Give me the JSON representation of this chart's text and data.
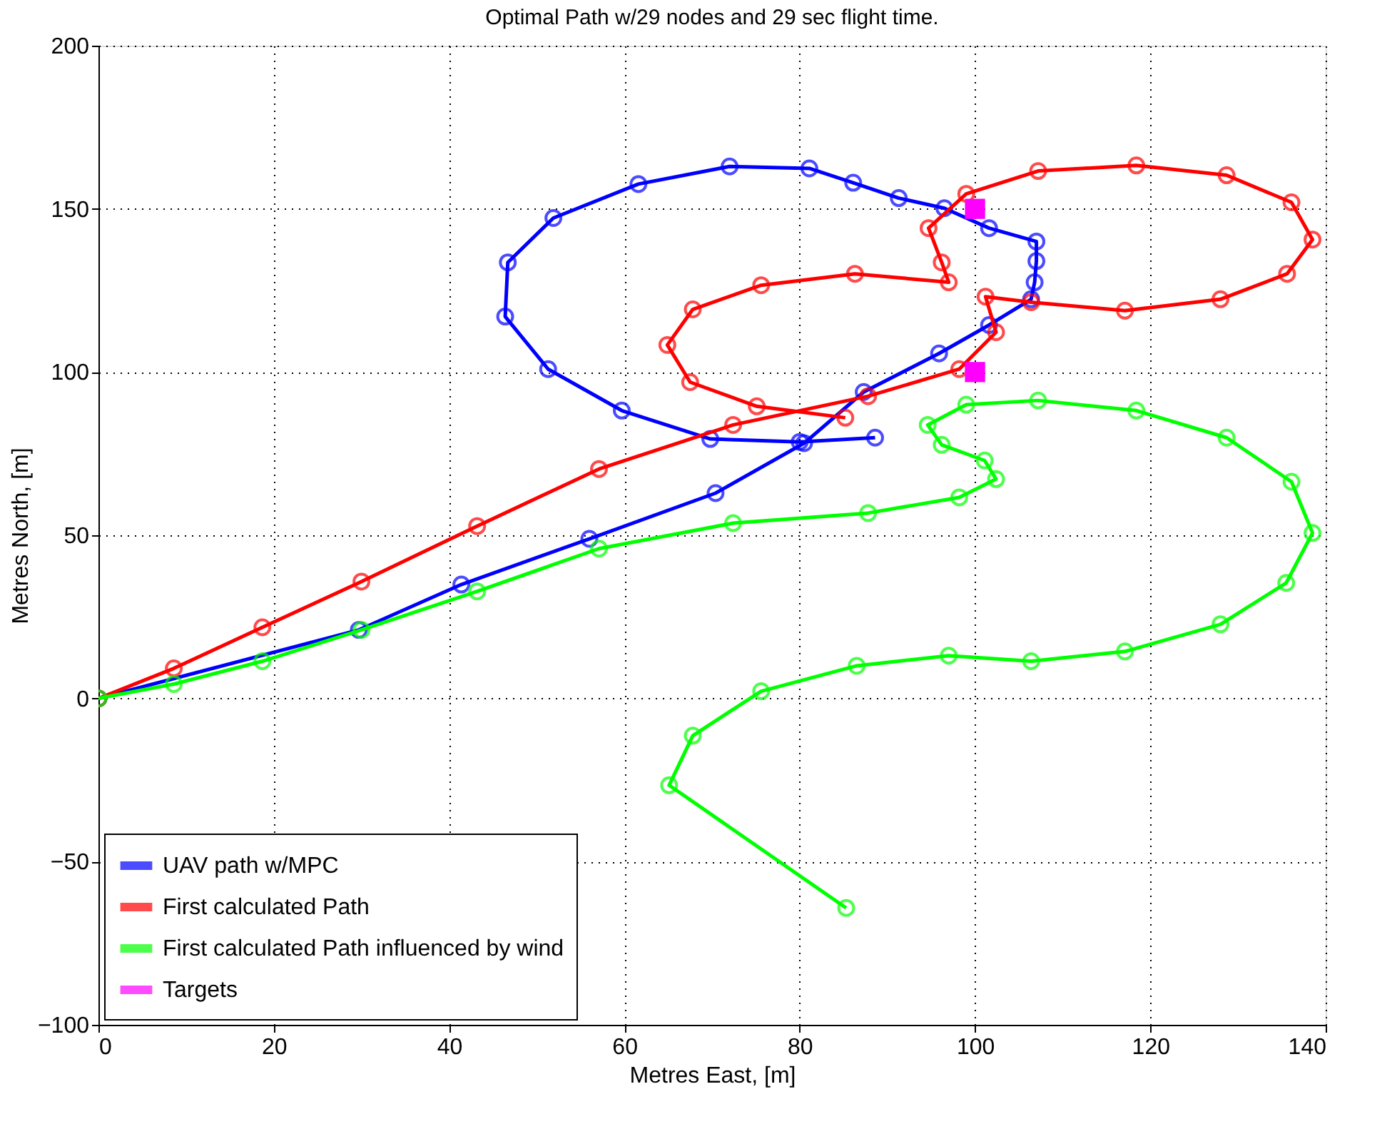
{
  "chart_data": {
    "type": "line",
    "title": "Optimal Path w/29 nodes and 29 sec flight time.",
    "xlabel": "Metres East, [m]",
    "ylabel": "Metres North, [m]",
    "xlim": [
      0,
      140
    ],
    "xticks": [
      0,
      20,
      40,
      60,
      80,
      100,
      120,
      140
    ],
    "ylim": [
      -100,
      200
    ],
    "yticks": [
      -100,
      -50,
      0,
      50,
      100,
      150,
      200
    ],
    "grid": true,
    "legend": "bottom left",
    "line_style": "solid",
    "series": [
      {
        "name": "UAV path w/MPC",
        "color": "#0000ff",
        "marker": "circle",
        "x": [
          0,
          29.7,
          41.4,
          56,
          70.4,
          80.5,
          87.3,
          95.9,
          101.6,
          106.4,
          106.8,
          107,
          107,
          101.6,
          96.5,
          91.3,
          86.1,
          81.1,
          72,
          61.6,
          51.9,
          46.7,
          46.4,
          51.3,
          59.7,
          69.8,
          80,
          88.6
        ],
        "values": [
          0,
          21,
          34.9,
          48.9,
          62.9,
          78.2,
          93.9,
          105.7,
          114.4,
          122.3,
          127.5,
          134,
          140,
          144.1,
          150.2,
          153.3,
          158,
          162.4,
          163,
          157.6,
          147.2,
          133.6,
          117,
          100.9,
          88.2,
          79.5,
          78.6,
          79.9
        ]
      },
      {
        "name": "First calculated Path",
        "color": "#ff0000",
        "marker": "circle",
        "x": [
          0,
          8.6,
          18.7,
          30,
          43.2,
          57.1,
          72.4,
          87.8,
          98.2,
          102.4,
          101.2,
          106.4,
          117.1,
          128,
          135.6,
          138.5,
          136.1,
          128.7,
          118.4,
          107.2,
          99,
          94.7,
          96.2,
          97,
          86.3,
          75.6,
          67.8,
          64.9,
          67.5,
          75.1,
          85.2
        ],
        "values": [
          0,
          9.2,
          21.8,
          35.8,
          52.8,
          70.3,
          83.8,
          92.6,
          100.9,
          112.2,
          123.1,
          121.4,
          118.8,
          122.3,
          130.1,
          140.6,
          152,
          160.3,
          163.3,
          161.6,
          154.6,
          144.1,
          133.6,
          127.5,
          130.1,
          126.6,
          119.2,
          108.3,
          96.9,
          89.5,
          86
        ]
      },
      {
        "name": "First calculated Path influenced by wind",
        "color": "#00ff00",
        "marker": "circle",
        "x": [
          0,
          8.6,
          18.7,
          30,
          43.2,
          57.1,
          72.4,
          87.8,
          98.2,
          102.4,
          101.1,
          96.2,
          94.6,
          99,
          107.2,
          118.4,
          128.7,
          136.1,
          138.5,
          135.5,
          128,
          117.1,
          106.4,
          97,
          86.5,
          75.6,
          67.8,
          65.1,
          85.3
        ],
        "values": [
          0,
          4.4,
          11.4,
          21,
          32.8,
          45.9,
          53.7,
          56.8,
          61.6,
          67.2,
          72.9,
          77.7,
          83.8,
          90,
          91.3,
          88.2,
          79.9,
          66.4,
          50.7,
          35.4,
          22.7,
          14.4,
          11.4,
          13.1,
          10,
          2.2,
          -11.4,
          -26.6,
          -64.2
        ]
      },
      {
        "name": "Targets",
        "color": "#ff00ff",
        "type": "scatter",
        "marker": "square",
        "x": [
          100,
          100
        ],
        "values": [
          100,
          150
        ]
      }
    ]
  }
}
